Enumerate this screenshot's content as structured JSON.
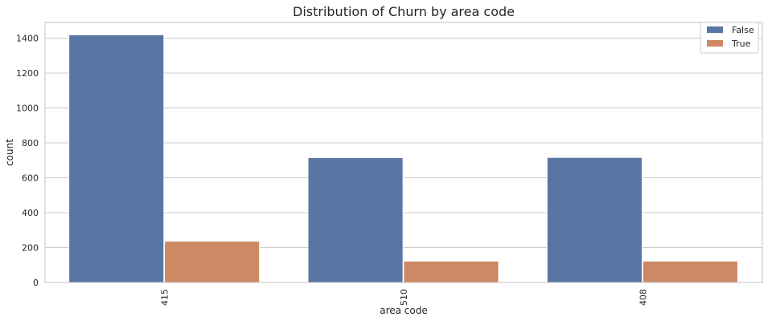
{
  "chart_data": {
    "type": "bar",
    "title": "Distribution of Churn by area code",
    "xlabel": "area code",
    "ylabel": "count",
    "categories": [
      "415",
      "510",
      "408"
    ],
    "series": [
      {
        "name": "False",
        "values": [
          1419,
          715,
          716
        ],
        "color": "#5975a4"
      },
      {
        "name": "True",
        "values": [
          236,
          122,
          122
        ],
        "color": "#cc8963"
      }
    ],
    "ylim": [
      0,
      1490
    ],
    "yticks": [
      0,
      200,
      400,
      600,
      800,
      1000,
      1200,
      1400
    ],
    "grid": "horizontal",
    "legend": "top-right"
  }
}
